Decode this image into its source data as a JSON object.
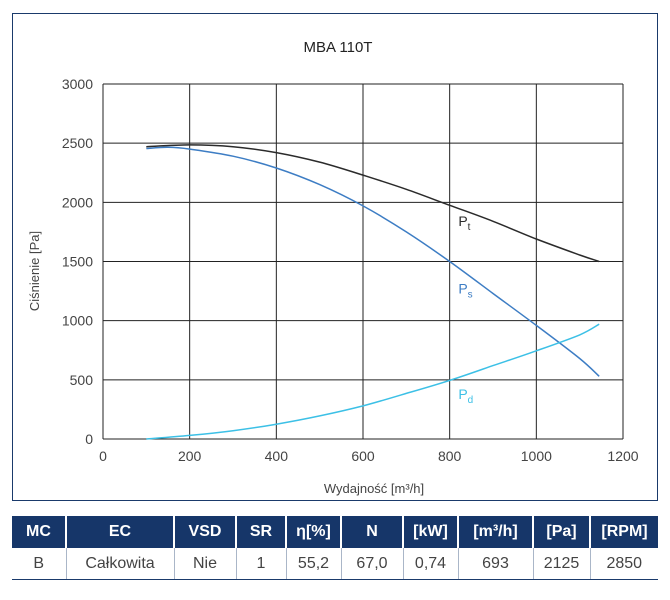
{
  "chart_data": {
    "type": "line",
    "title": "MBA 110T",
    "xlabel": "Wydajność [m³/h]",
    "ylabel": "Ciśnienie [Pa]",
    "xlim": [
      0,
      1200
    ],
    "ylim": [
      0,
      3000
    ],
    "xticks": [
      "0",
      "200",
      "400",
      "600",
      "800",
      "1000",
      "1200"
    ],
    "yticks": [
      "0",
      "500",
      "1000",
      "1500",
      "2000",
      "2500",
      "3000"
    ],
    "grid": true,
    "series": [
      {
        "name": "Pt",
        "label_main": "P",
        "label_sub": "t",
        "color": "#2b2b2b",
        "x": [
          100,
          200,
          300,
          400,
          500,
          600,
          700,
          800,
          900,
          1000,
          1100,
          1145
        ],
        "y": [
          2470,
          2485,
          2470,
          2420,
          2340,
          2230,
          2110,
          1975,
          1840,
          1690,
          1555,
          1500
        ]
      },
      {
        "name": "Ps",
        "label_main": "P",
        "label_sub": "s",
        "color": "#3d7dc4",
        "x": [
          100,
          150,
          200,
          300,
          400,
          500,
          600,
          700,
          800,
          900,
          1000,
          1100,
          1145
        ],
        "y": [
          2455,
          2465,
          2450,
          2390,
          2290,
          2150,
          1970,
          1750,
          1500,
          1230,
          960,
          680,
          530
        ]
      },
      {
        "name": "Pd",
        "label_main": "P",
        "label_sub": "d",
        "color": "#3cc0e6",
        "x": [
          100,
          200,
          300,
          400,
          500,
          600,
          700,
          800,
          900,
          1000,
          1100,
          1145
        ],
        "y": [
          0,
          30,
          70,
          125,
          195,
          280,
          385,
          495,
          620,
          745,
          880,
          970
        ]
      }
    ]
  },
  "table": {
    "headers": [
      "MC",
      "EC",
      "VSD",
      "SR",
      "η[%]",
      "N",
      "[kW]",
      "[m³/h]",
      "[Pa]",
      "[RPM]"
    ],
    "row": [
      "B",
      "Całkowita",
      "Nie",
      "1",
      "55,2",
      "67,0",
      "0,74",
      "693",
      "2125",
      "2850"
    ]
  }
}
